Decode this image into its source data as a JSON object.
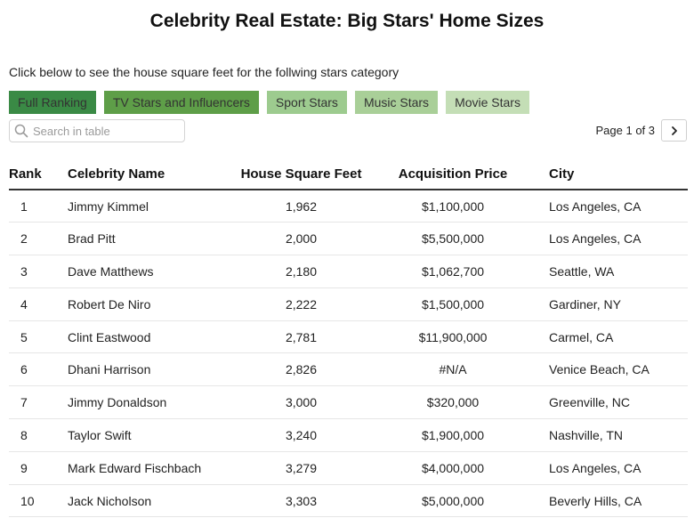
{
  "page": {
    "title": "Celebrity Real Estate: Big Stars' Home Sizes",
    "subtitle": "Click below to see the house square feet for the follwing stars category"
  },
  "categories": [
    {
      "label": "Full Ranking",
      "color": "#3a8a45",
      "active": true
    },
    {
      "label": "TV Stars and Influencers",
      "color": "#5e9e48",
      "active": false
    },
    {
      "label": "Sport Stars",
      "color": "#9dcb8f",
      "active": false
    },
    {
      "label": "Music Stars",
      "color": "#a9cf98",
      "active": false
    },
    {
      "label": "Movie Stars",
      "color": "#c4deb6",
      "active": false
    }
  ],
  "search": {
    "placeholder": "Search in table",
    "icon": "search-icon"
  },
  "pagination": {
    "label": "Page 1 of 3",
    "next_icon": "chevron-right-icon"
  },
  "chart_data": {
    "type": "table",
    "columns": [
      "Rank",
      "Celebrity Name",
      "House Square Feet",
      "Acquisition Price",
      "City"
    ],
    "rows": [
      [
        "1",
        "Jimmy Kimmel",
        "1,962",
        "$1,100,000",
        "Los Angeles, CA"
      ],
      [
        "2",
        "Brad Pitt",
        "2,000",
        "$5,500,000",
        "Los Angeles, CA"
      ],
      [
        "3",
        "Dave Matthews",
        "2,180",
        "$1,062,700",
        "Seattle, WA"
      ],
      [
        "4",
        "Robert De Niro",
        "2,222",
        "$1,500,000",
        "Gardiner, NY"
      ],
      [
        "5",
        "Clint Eastwood",
        "2,781",
        "$11,900,000",
        "Carmel, CA"
      ],
      [
        "6",
        "Dhani Harrison",
        "2,826",
        "#N/A",
        "Venice Beach, CA"
      ],
      [
        "7",
        "Jimmy Donaldson",
        "3,000",
        "$320,000",
        "Greenville, NC"
      ],
      [
        "8",
        "Taylor Swift",
        "3,240",
        "$1,900,000",
        "Nashville, TN"
      ],
      [
        "9",
        "Mark Edward Fischbach",
        "3,279",
        "$4,000,000",
        "Los Angeles, CA"
      ],
      [
        "10",
        "Jack Nicholson",
        "3,303",
        "$5,000,000",
        "Beverly Hills, CA"
      ]
    ]
  }
}
